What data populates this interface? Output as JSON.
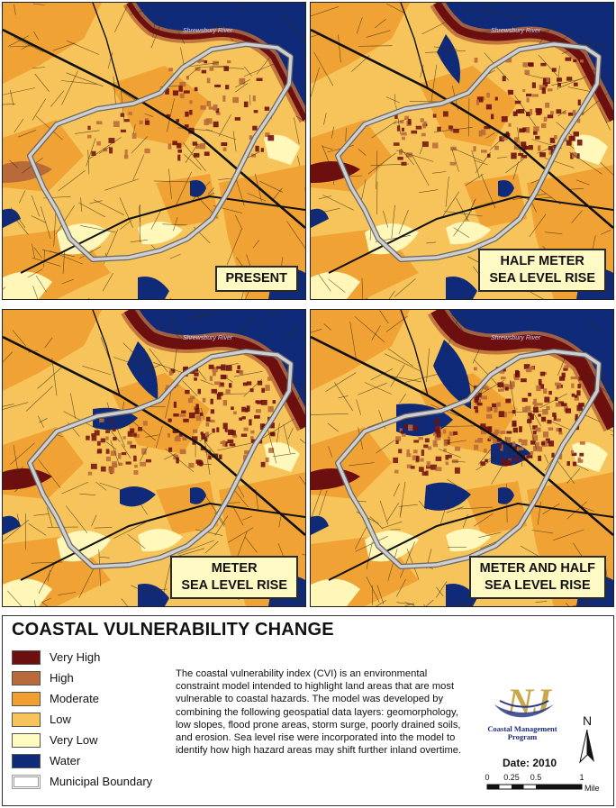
{
  "map": {
    "river_label": "Shrewsbury River",
    "panels": [
      {
        "scenario_lines": [
          "PRESENT"
        ],
        "inundation_level": 0
      },
      {
        "scenario_lines": [
          "HALF METER",
          "SEA LEVEL RISE"
        ],
        "inundation_level": 1
      },
      {
        "scenario_lines": [
          "METER",
          "SEA LEVEL RISE"
        ],
        "inundation_level": 2
      },
      {
        "scenario_lines": [
          "METER AND HALF",
          "SEA LEVEL RISE"
        ],
        "inundation_level": 3
      }
    ]
  },
  "legend": {
    "title": "COASTAL VULNERABILITY CHANGE",
    "items": [
      {
        "label": "Very High",
        "color": "#6e0f0f"
      },
      {
        "label": "High",
        "color": "#b86a3a"
      },
      {
        "label": "Moderate",
        "color": "#f0a030"
      },
      {
        "label": "Low",
        "color": "#f6c45a"
      },
      {
        "label": "Very Low",
        "color": "#fffbc0"
      },
      {
        "label": "Water",
        "color": "#102a7a"
      },
      {
        "label": "Municipal Boundary",
        "color": "#cfcfcf"
      }
    ],
    "description": "The coastal vulnerability index (CVI) is an environmental constraint model intended to highlight land areas that are most vulnerable to coastal hazards. The model was developed by combining the following geospatial data layers: geomorphology, low slopes, flood prone areas, storm surge, poorly drained soils, and erosion. Sea level rise were incorporated into the model to identify how high hazard areas may shift further inland overtime.",
    "logo_text": "Coastal Management Program",
    "logo_letters": "NJ",
    "date": "Date: 2010",
    "north_label": "N",
    "scale_ticks": [
      "0",
      "0.25",
      "0.5",
      "1"
    ],
    "scale_unit": "Mile"
  }
}
